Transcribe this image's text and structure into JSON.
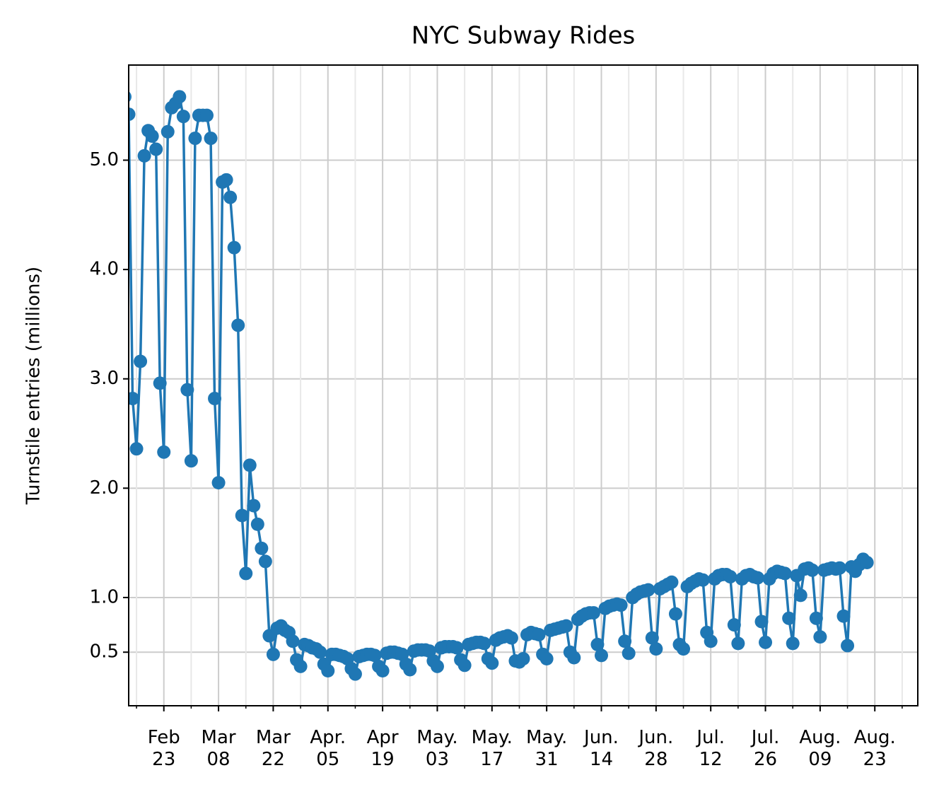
{
  "chart_data": {
    "type": "line",
    "title": "NYC Subway Rides",
    "y_label": "Turnstile entries (millions)",
    "color": "#1f77b4",
    "grid": true,
    "xlim": [
      "02-14",
      "09-03"
    ],
    "ylim": [
      0.01,
      5.87
    ],
    "yticks": [
      0.5,
      {
        "value": 1,
        "label": "1.0"
      },
      {
        "value": 2,
        "label": "2.0"
      },
      {
        "value": 3,
        "label": "3.0"
      },
      {
        "value": 4,
        "label": "4.0"
      },
      {
        "value": 5,
        "label": "5.0"
      }
    ],
    "xticks": [
      {
        "value": "02-23",
        "label": "Feb\n23"
      },
      {
        "value": "03-08",
        "label": "Mar\n08"
      },
      {
        "value": "03-22",
        "label": "Mar\n22"
      },
      {
        "value": "04-05",
        "label": "Apr.\n05"
      },
      {
        "value": "04-19",
        "label": "Apr\n19"
      },
      {
        "value": "05-03",
        "label": "May.\n03"
      },
      {
        "value": "05-17",
        "label": "May.\n17"
      },
      {
        "value": "05-31",
        "label": "May.\n31"
      },
      {
        "value": "06-14",
        "label": "Jun.\n14"
      },
      {
        "value": "06-28",
        "label": "Jun.\n28"
      },
      {
        "value": "07-12",
        "label": "Jul.\n12"
      },
      {
        "value": "07-26",
        "label": "Jul.\n26"
      },
      {
        "value": "08-09",
        "label": "Aug.\n09"
      },
      {
        "value": "08-23",
        "label": "Aug.\n23"
      }
    ],
    "xminorticks": [
      "02-16",
      "03-01",
      "03-15",
      "03-29",
      "04-12",
      "04-26",
      "05-10",
      "05-24",
      "06-07",
      "06-21",
      "07-05",
      "07-19",
      "08-02",
      "08-16",
      "08-30"
    ],
    "x": [
      "02-13",
      "02-14",
      "02-15",
      "02-16",
      "02-17",
      "02-18",
      "02-19",
      "02-20",
      "02-21",
      "02-22",
      "02-23",
      "02-24",
      "02-25",
      "02-26",
      "02-27",
      "02-28",
      "02-29",
      "03-01",
      "03-02",
      "03-03",
      "03-04",
      "03-05",
      "03-06",
      "03-07",
      "03-08",
      "03-09",
      "03-10",
      "03-11",
      "03-12",
      "03-13",
      "03-14",
      "03-15",
      "03-16",
      "03-17",
      "03-18",
      "03-19",
      "03-20",
      "03-21",
      "03-22",
      "03-23",
      "03-24",
      "03-25",
      "03-26",
      "03-27",
      "03-28",
      "03-29",
      "03-30",
      "03-31",
      "04-01",
      "04-02",
      "04-03",
      "04-04",
      "04-05",
      "04-06",
      "04-07",
      "04-08",
      "04-09",
      "04-10",
      "04-11",
      "04-12",
      "04-13",
      "04-14",
      "04-15",
      "04-16",
      "04-17",
      "04-18",
      "04-19",
      "04-20",
      "04-21",
      "04-22",
      "04-23",
      "04-24",
      "04-25",
      "04-26",
      "04-27",
      "04-28",
      "04-29",
      "04-30",
      "05-01",
      "05-02",
      "05-03",
      "05-04",
      "05-05",
      "05-06",
      "05-07",
      "05-08",
      "05-09",
      "05-10",
      "05-11",
      "05-12",
      "05-13",
      "05-14",
      "05-15",
      "05-16",
      "05-17",
      "05-18",
      "05-19",
      "05-20",
      "05-21",
      "05-22",
      "05-23",
      "05-24",
      "05-25",
      "05-26",
      "05-27",
      "05-28",
      "05-29",
      "05-30",
      "05-31",
      "06-01",
      "06-02",
      "06-03",
      "06-04",
      "06-05",
      "06-06",
      "06-07",
      "06-08",
      "06-09",
      "06-10",
      "06-11",
      "06-12",
      "06-13",
      "06-14",
      "06-15",
      "06-16",
      "06-17",
      "06-18",
      "06-19",
      "06-20",
      "06-21",
      "06-22",
      "06-23",
      "06-24",
      "06-25",
      "06-26",
      "06-27",
      "06-28",
      "06-29",
      "06-30",
      "07-01",
      "07-02",
      "07-03",
      "07-04",
      "07-05",
      "07-06",
      "07-07",
      "07-08",
      "07-09",
      "07-10",
      "07-11",
      "07-12",
      "07-13",
      "07-14",
      "07-15",
      "07-16",
      "07-17",
      "07-18",
      "07-19",
      "07-20",
      "07-21",
      "07-22",
      "07-23",
      "07-24",
      "07-25",
      "07-26",
      "07-27",
      "07-28",
      "07-29",
      "07-30",
      "07-31",
      "08-01",
      "08-02",
      "08-03",
      "08-04",
      "08-05",
      "08-06",
      "08-07",
      "08-08",
      "08-09",
      "08-10",
      "08-11",
      "08-12",
      "08-13",
      "08-14",
      "08-15",
      "08-16",
      "08-17",
      "08-18",
      "08-19",
      "08-20",
      "08-21"
    ],
    "values": [
      5.58,
      5.42,
      2.82,
      2.36,
      3.16,
      5.04,
      5.27,
      5.22,
      5.1,
      2.96,
      2.33,
      5.26,
      5.48,
      5.52,
      5.58,
      5.4,
      2.9,
      2.25,
      5.2,
      5.41,
      5.41,
      5.41,
      5.2,
      2.82,
      2.05,
      4.8,
      4.82,
      4.66,
      4.2,
      3.49,
      1.75,
      1.22,
      2.21,
      1.84,
      1.67,
      1.45,
      1.33,
      0.65,
      0.48,
      0.72,
      0.74,
      0.7,
      0.68,
      0.6,
      0.43,
      0.37,
      0.57,
      0.56,
      0.54,
      0.53,
      0.5,
      0.39,
      0.33,
      0.48,
      0.48,
      0.47,
      0.46,
      0.44,
      0.35,
      0.3,
      0.46,
      0.47,
      0.48,
      0.48,
      0.47,
      0.37,
      0.33,
      0.49,
      0.5,
      0.5,
      0.49,
      0.48,
      0.39,
      0.34,
      0.51,
      0.52,
      0.52,
      0.52,
      0.51,
      0.42,
      0.37,
      0.54,
      0.55,
      0.55,
      0.55,
      0.54,
      0.43,
      0.38,
      0.57,
      0.58,
      0.59,
      0.59,
      0.58,
      0.44,
      0.4,
      0.61,
      0.63,
      0.64,
      0.65,
      0.63,
      0.42,
      0.41,
      0.44,
      0.66,
      0.68,
      0.67,
      0.66,
      0.48,
      0.44,
      0.7,
      0.71,
      0.72,
      0.73,
      0.74,
      0.5,
      0.45,
      0.8,
      0.83,
      0.85,
      0.86,
      0.86,
      0.57,
      0.47,
      0.9,
      0.92,
      0.93,
      0.94,
      0.93,
      0.6,
      0.49,
      1.0,
      1.03,
      1.05,
      1.06,
      1.07,
      0.63,
      0.53,
      1.08,
      1.1,
      1.12,
      1.14,
      0.85,
      0.57,
      0.53,
      1.1,
      1.13,
      1.15,
      1.17,
      1.16,
      0.68,
      0.6,
      1.17,
      1.2,
      1.21,
      1.21,
      1.19,
      0.75,
      0.58,
      1.17,
      1.2,
      1.21,
      1.19,
      1.18,
      0.78,
      0.59,
      1.17,
      1.22,
      1.24,
      1.23,
      1.22,
      0.81,
      0.58,
      1.2,
      1.02,
      1.26,
      1.27,
      1.25,
      0.81,
      0.64,
      1.25,
      1.26,
      1.27,
      1.26,
      1.27,
      0.83,
      0.56,
      1.28,
      1.24,
      1.3,
      1.35,
      1.32
    ]
  }
}
